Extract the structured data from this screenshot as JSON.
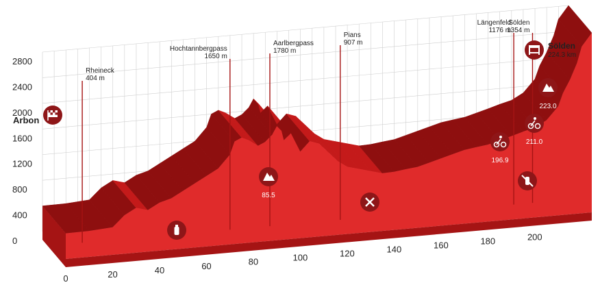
{
  "chart_data": {
    "type": "area",
    "title": "",
    "xlabel": "",
    "ylabel": "",
    "start": {
      "name": "Arbon"
    },
    "finish": {
      "name": "Sölden",
      "distance_label": "224.3 km"
    },
    "x_ticks": [
      "0",
      "20",
      "40",
      "60",
      "80",
      "100",
      "120",
      "140",
      "160",
      "180",
      "200"
    ],
    "y_ticks": [
      "0",
      "400",
      "800",
      "1200",
      "1600",
      "2000",
      "2400",
      "2800"
    ],
    "xlim": [
      0,
      224.3
    ],
    "ylim": [
      0,
      2800
    ],
    "profile": {
      "x": [
        0,
        10,
        20,
        25,
        30,
        35,
        40,
        45,
        50,
        55,
        60,
        65,
        70,
        72,
        75,
        78,
        80,
        82,
        85,
        88,
        90,
        92,
        93,
        96,
        100,
        104,
        108,
        112,
        116,
        120,
        125,
        130,
        135,
        140,
        145,
        150,
        155,
        160,
        165,
        170,
        175,
        180,
        185,
        190,
        195,
        200,
        205,
        210,
        212,
        215,
        218,
        220,
        224.3
      ],
      "y": [
        400,
        404,
        430,
        600,
        700,
        650,
        750,
        800,
        900,
        1000,
        1100,
        1200,
        1400,
        1600,
        1650,
        1600,
        1550,
        1500,
        1550,
        1650,
        1780,
        1700,
        1550,
        1650,
        1350,
        1500,
        1450,
        1300,
        1150,
        1050,
        1000,
        950,
        900,
        907,
        930,
        950,
        1000,
        1050,
        1100,
        1150,
        1176,
        1200,
        1250,
        1300,
        1354,
        1400,
        1500,
        1700,
        1900,
        2100,
        2350,
        2600,
        2800
      ]
    },
    "passes": [
      {
        "name": "Rheineck",
        "elev": "404 m",
        "km": 12
      },
      {
        "name": "Hochtannbergpass",
        "elev": "1650 m",
        "km": 75
      },
      {
        "name": "Aarlbergpass",
        "elev": "1780 m",
        "km": 92
      },
      {
        "name": "Pians",
        "elev": "907 m",
        "km": 122
      },
      {
        "name": "Längenfeld",
        "elev": "1176 m",
        "km": 196
      },
      {
        "name": "Sölden",
        "elev": "1354 m",
        "km": 204
      }
    ],
    "markers": [
      {
        "icon": "water-bottle-icon",
        "km": 45
      },
      {
        "icon": "mountain-icon",
        "km": 85.5,
        "label": "85.5"
      },
      {
        "icon": "feed-zone-icon",
        "km": 130
      },
      {
        "icon": "cyclist-sprint-icon",
        "km": 196.9,
        "label": "196.9"
      },
      {
        "icon": "cyclist-sprint-icon",
        "km": 211.0,
        "label": "211.0"
      },
      {
        "icon": "mountain-icon",
        "km": 223.0,
        "label": "223.0"
      },
      {
        "icon": "no-feed-zone-icon",
        "km": 210
      }
    ],
    "colors": {
      "top": "#c41a1a",
      "side": "#e02b2b",
      "dark": "#8e0f0f",
      "front": "#a51414",
      "grid": "#cfcfcf",
      "badge": "#8e1618"
    }
  }
}
